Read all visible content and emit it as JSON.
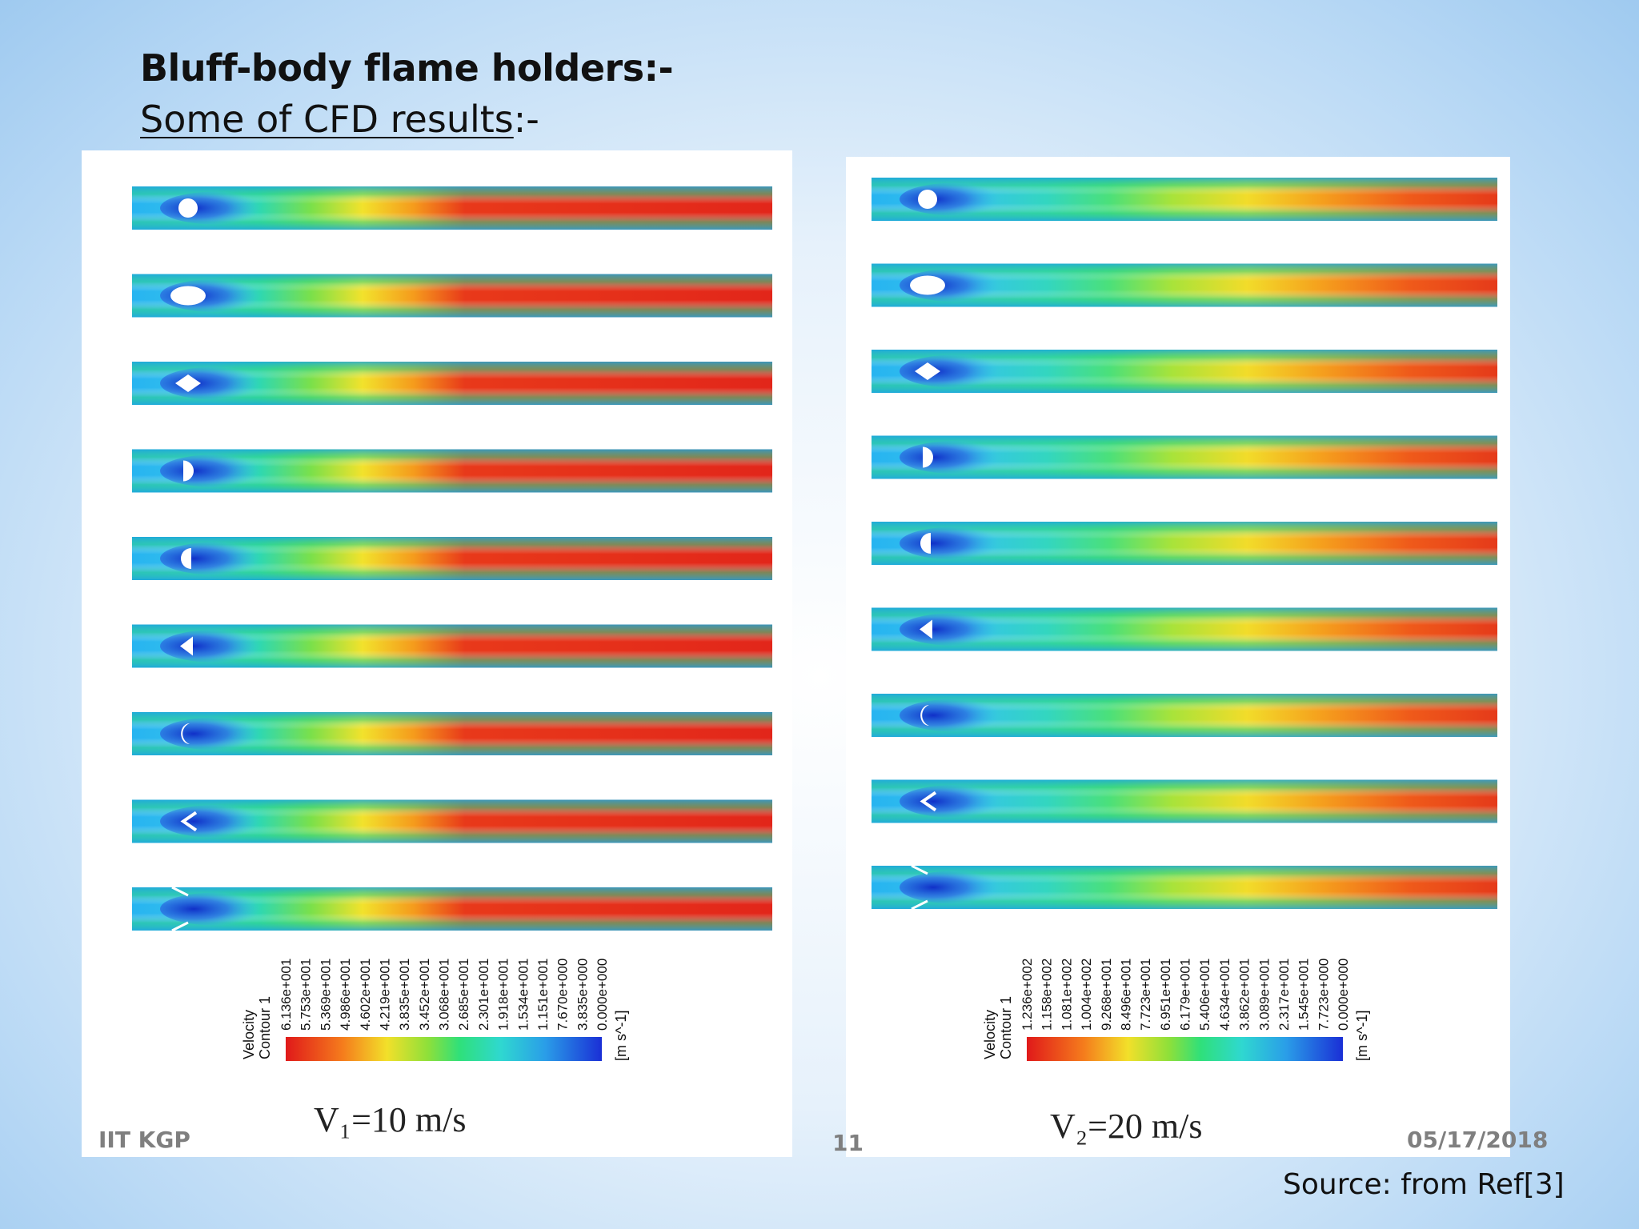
{
  "slide": {
    "title": "Bluff-body flame holders:-",
    "subtitle_underlined": "Some of CFD results",
    "subtitle_suffix": ":-",
    "footer_left": "IIT KGP",
    "footer_page": "11",
    "footer_date": "05/17/2018",
    "source": "Source: from Ref[3]"
  },
  "bluff_body_shapes": [
    "circle",
    "ellipse",
    "diamond",
    "semicircle-right",
    "semicircle-left",
    "triangle-left",
    "crescent",
    "v-gutter",
    "wall-step"
  ],
  "panels": [
    {
      "speed_label": "V₁=10 m/s",
      "legend_title": "Velocity",
      "legend_subtitle": "Contour 1",
      "legend_unit": "[m s^-1]",
      "legend_values": [
        "6.136e+001",
        "5.753e+001",
        "5.369e+001",
        "4.986e+001",
        "4.602e+001",
        "4.219e+001",
        "3.835e+001",
        "3.452e+001",
        "3.068e+001",
        "2.685e+001",
        "2.301e+001",
        "1.918e+001",
        "1.534e+001",
        "1.151e+001",
        "7.670e+000",
        "3.835e+000",
        "0.000e+000"
      ]
    },
    {
      "speed_label": "V₂=20 m/s",
      "legend_title": "Velocity",
      "legend_subtitle": "Contour 1",
      "legend_unit": "[m s^-1]",
      "legend_values": [
        "1.236e+002",
        "1.158e+002",
        "1.081e+002",
        "1.004e+002",
        "9.268e+001",
        "8.496e+001",
        "7.723e+001",
        "6.951e+001",
        "6.179e+001",
        "5.406e+001",
        "4.634e+001",
        "3.862e+001",
        "3.089e+001",
        "2.317e+001",
        "1.545e+001",
        "7.723e+000",
        "0.000e+000"
      ]
    }
  ],
  "colors": {
    "contour_low": "#1a3fd6",
    "contour_mid": "#2ee07a",
    "contour_high": "#e8191a"
  }
}
